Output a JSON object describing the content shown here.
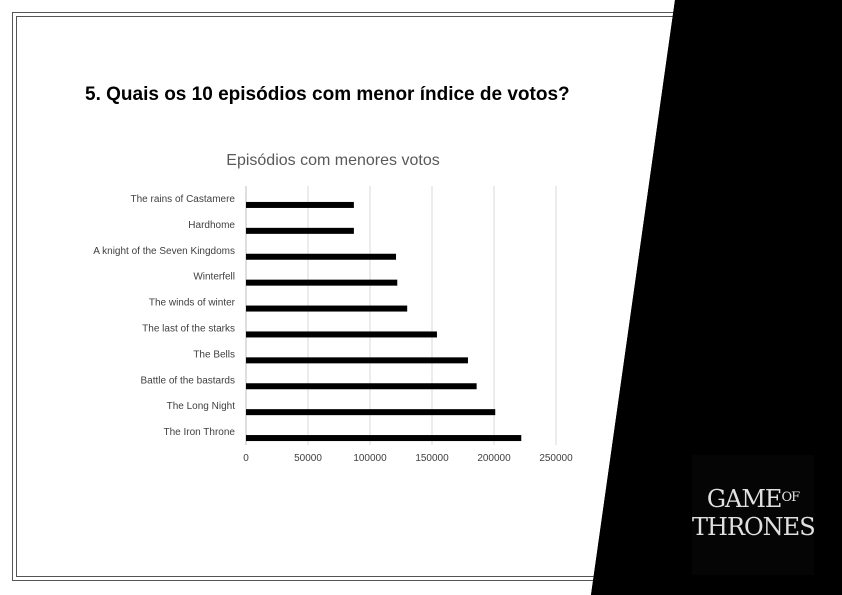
{
  "slide": {
    "heading": "5. Quais os 10 episódios com menor índice de votos?",
    "colors": {
      "background": "#ffffff",
      "accent_black": "#000000",
      "frame": "#555555"
    }
  },
  "logo": {
    "line1": "GAME",
    "of": "OF",
    "line2": "THRONES"
  },
  "chart_data": {
    "type": "bar",
    "orientation": "horizontal",
    "title": "Episódios com menores votos",
    "categories": [
      "The rains of Castamere",
      "Hardhome",
      "A knight of the Seven Kingdoms",
      "Winterfell",
      "The winds of winter",
      "The last of the starks",
      "The Bells",
      "Battle of the bastards",
      "The Long Night",
      "The Iron Throne"
    ],
    "values": [
      87000,
      87000,
      121000,
      122000,
      130000,
      154000,
      179000,
      186000,
      201000,
      222000
    ],
    "xlim": [
      0,
      250000
    ],
    "xticks": [
      0,
      50000,
      100000,
      150000,
      200000,
      250000
    ],
    "xtick_labels": [
      "0",
      "50000",
      "100000",
      "150000",
      "200000",
      "250000"
    ],
    "grid": "vertical",
    "legend": "none",
    "bar_color": "#000000"
  }
}
